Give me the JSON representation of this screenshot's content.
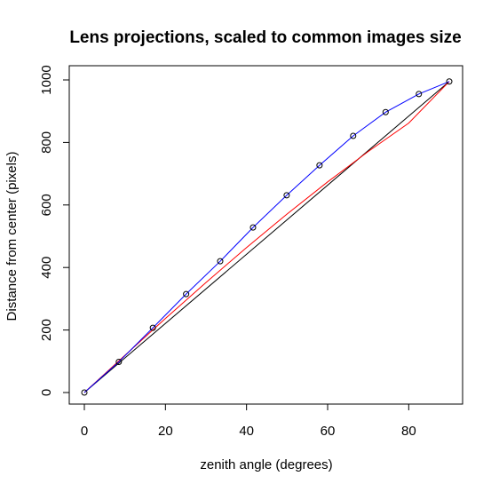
{
  "chart_data": {
    "type": "line",
    "title": "Lens projections, scaled to common images size",
    "xlabel": "zenith angle (degrees)",
    "ylabel": "Distance from center (pixels)",
    "xlim": [
      0,
      90
    ],
    "ylim": [
      0,
      1000
    ],
    "xticks": [
      0,
      20,
      40,
      60,
      80
    ],
    "yticks": [
      0,
      200,
      400,
      600,
      800,
      1000
    ],
    "grid": false,
    "legend": "none",
    "series": [
      {
        "color": "#000000",
        "style": "line",
        "x": [
          0,
          90
        ],
        "y": [
          0,
          995
        ]
      },
      {
        "color": "#ff0000",
        "style": "line",
        "x": [
          0,
          10,
          20,
          30,
          40,
          50,
          60,
          70,
          80,
          90
        ],
        "y": [
          0,
          119,
          237,
          352,
          464,
          571,
          674,
          771,
          862,
          995
        ]
      },
      {
        "color": "#0000ff",
        "style": "line",
        "x": [
          0,
          8.5,
          16.9,
          25.1,
          33.5,
          41.6,
          49.9,
          58,
          66.3,
          74.3,
          82.5,
          90
        ],
        "y": [
          0,
          98,
          207,
          315,
          420,
          528,
          631,
          727,
          821,
          897,
          955,
          995
        ]
      },
      {
        "color": "#000000",
        "style": "points",
        "x": [
          0,
          8.5,
          16.9,
          25.1,
          33.5,
          41.6,
          49.9,
          58,
          66.3,
          74.3,
          82.5,
          90
        ],
        "y": [
          0,
          98,
          207,
          315,
          420,
          528,
          631,
          727,
          821,
          897,
          955,
          995
        ]
      }
    ]
  }
}
